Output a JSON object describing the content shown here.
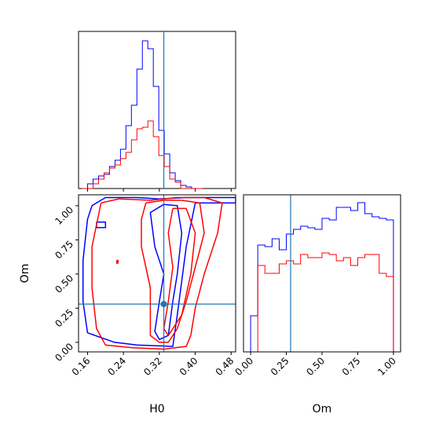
{
  "chart_data": [
    {
      "type": "histogram",
      "panel": "H0 marginal",
      "xlabel": "",
      "ylabel": "",
      "xlim": [
        0.14,
        0.49
      ],
      "bin_width": 0.0122,
      "x_start": 0.148,
      "truth": 0.33,
      "series": [
        {
          "color": "#0000ff",
          "values": [
            0.0,
            0.03,
            0.06,
            0.08,
            0.09,
            0.14,
            0.18,
            0.25,
            0.4,
            0.53,
            0.76,
            0.94,
            0.89,
            0.65,
            0.37,
            0.22,
            0.1,
            0.05,
            0.02,
            0.01,
            0.0,
            0.0
          ]
        },
        {
          "color": "#ff0000",
          "values": [
            0.0,
            0.0,
            0.03,
            0.06,
            0.1,
            0.13,
            0.15,
            0.19,
            0.23,
            0.31,
            0.38,
            0.39,
            0.43,
            0.33,
            0.21,
            0.14,
            0.06,
            0.04,
            0.0,
            0.0,
            0.0,
            0.0
          ]
        }
      ]
    },
    {
      "type": "contour",
      "panel": "H0 vs Om",
      "xlabel": "H0",
      "ylabel": "Om",
      "xlim": [
        0.14,
        0.49
      ],
      "ylim": [
        -0.07,
        1.08
      ],
      "x_ticks": [
        "0.16",
        "0.24",
        "0.32",
        "0.40",
        "0.48"
      ],
      "x_tick_values": [
        0.16,
        0.24,
        0.32,
        0.4,
        0.48
      ],
      "y_ticks": [
        "0.00",
        "0.25",
        "0.50",
        "0.75",
        "1.00"
      ],
      "y_tick_values": [
        0.0,
        0.25,
        0.5,
        0.75,
        1.0
      ],
      "truth": {
        "H0": 0.33,
        "Om": 0.28
      },
      "series": [
        {
          "color": "#0000ff",
          "contours": [
            [
              [
                0.17,
                1.0
              ],
              [
                0.2,
                1.06
              ],
              [
                0.27,
                1.06
              ],
              [
                0.32,
                1.05
              ],
              [
                0.38,
                1.06
              ],
              [
                0.49,
                1.06
              ],
              [
                0.49,
                1.02
              ],
              [
                0.4,
                1.02
              ],
              [
                0.38,
                0.7
              ],
              [
                0.37,
                0.45
              ],
              [
                0.36,
                0.2
              ],
              [
                0.35,
                -0.03
              ],
              [
                0.27,
                -0.02
              ],
              [
                0.22,
                0.0
              ],
              [
                0.16,
                0.07
              ],
              [
                0.15,
                0.3
              ],
              [
                0.15,
                0.6
              ],
              [
                0.16,
                0.9
              ],
              [
                0.17,
                1.0
              ]
            ],
            [
              [
                0.33,
                1.01
              ],
              [
                0.3,
                0.95
              ],
              [
                0.31,
                0.7
              ],
              [
                0.33,
                0.5
              ],
              [
                0.32,
                0.3
              ],
              [
                0.31,
                0.08
              ],
              [
                0.32,
                0.02
              ],
              [
                0.34,
                0.05
              ],
              [
                0.35,
                0.3
              ],
              [
                0.36,
                0.5
              ],
              [
                0.37,
                0.8
              ],
              [
                0.36,
                1.0
              ],
              [
                0.33,
                1.01
              ]
            ],
            [
              [
                0.18,
                0.88
              ],
              [
                0.2,
                0.88
              ],
              [
                0.2,
                0.84
              ],
              [
                0.18,
                0.84
              ],
              [
                0.18,
                0.88
              ]
            ]
          ]
        },
        {
          "color": "#ff0000",
          "contours": [
            [
              [
                0.19,
                1.02
              ],
              [
                0.23,
                1.05
              ],
              [
                0.3,
                1.04
              ],
              [
                0.36,
                1.06
              ],
              [
                0.42,
                1.06
              ],
              [
                0.46,
                1.02
              ],
              [
                0.45,
                0.8
              ],
              [
                0.42,
                0.5
              ],
              [
                0.4,
                0.25
              ],
              [
                0.39,
                0.05
              ],
              [
                0.38,
                -0.03
              ],
              [
                0.33,
                -0.05
              ],
              [
                0.26,
                -0.04
              ],
              [
                0.2,
                -0.02
              ],
              [
                0.18,
                0.1
              ],
              [
                0.17,
                0.4
              ],
              [
                0.17,
                0.7
              ],
              [
                0.19,
                1.02
              ]
            ],
            [
              [
                0.29,
                1.02
              ],
              [
                0.28,
                0.9
              ],
              [
                0.28,
                0.7
              ],
              [
                0.29,
                0.55
              ],
              [
                0.3,
                0.4
              ],
              [
                0.3,
                0.2
              ],
              [
                0.3,
                0.05
              ],
              [
                0.32,
                0.0
              ],
              [
                0.34,
                0.0
              ],
              [
                0.36,
                0.1
              ],
              [
                0.38,
                0.3
              ],
              [
                0.4,
                0.55
              ],
              [
                0.42,
                0.8
              ],
              [
                0.41,
                1.02
              ],
              [
                0.37,
                1.04
              ],
              [
                0.33,
                1.04
              ],
              [
                0.29,
                1.02
              ]
            ],
            [
              [
                0.35,
                0.98
              ],
              [
                0.34,
                0.8
              ],
              [
                0.35,
                0.55
              ],
              [
                0.34,
                0.3
              ],
              [
                0.33,
                0.1
              ],
              [
                0.34,
                0.05
              ],
              [
                0.37,
                0.2
              ],
              [
                0.39,
                0.5
              ],
              [
                0.4,
                0.8
              ],
              [
                0.38,
                0.98
              ],
              [
                0.35,
                0.98
              ]
            ],
            [
              [
                0.225,
                0.6
              ],
              [
                0.228,
                0.6
              ],
              [
                0.228,
                0.58
              ],
              [
                0.225,
                0.58
              ],
              [
                0.225,
                0.6
              ]
            ]
          ]
        }
      ]
    },
    {
      "type": "histogram",
      "panel": "Om marginal",
      "xlabel": "Om",
      "ylabel": "",
      "xlim": [
        -0.05,
        1.05
      ],
      "x_ticks": [
        "0.00",
        "0.25",
        "0.50",
        "0.75",
        "1.00"
      ],
      "x_tick_values": [
        0.0,
        0.25,
        0.5,
        0.75,
        1.0
      ],
      "bin_width": 0.05,
      "x_start": 0.0,
      "truth": 0.28,
      "series": [
        {
          "color": "#0000ff",
          "values": [
            0.23,
            0.68,
            0.67,
            0.72,
            0.65,
            0.75,
            0.78,
            0.8,
            0.79,
            0.78,
            0.85,
            0.84,
            0.92,
            0.92,
            0.9,
            0.95,
            0.88,
            0.86,
            0.85,
            0.84,
            0.0
          ]
        },
        {
          "color": "#ff0000",
          "values": [
            0.0,
            0.55,
            0.5,
            0.5,
            0.56,
            0.58,
            0.56,
            0.62,
            0.6,
            0.6,
            0.63,
            0.62,
            0.58,
            0.6,
            0.55,
            0.6,
            0.62,
            0.62,
            0.5,
            0.48,
            0.0
          ]
        }
      ]
    }
  ]
}
